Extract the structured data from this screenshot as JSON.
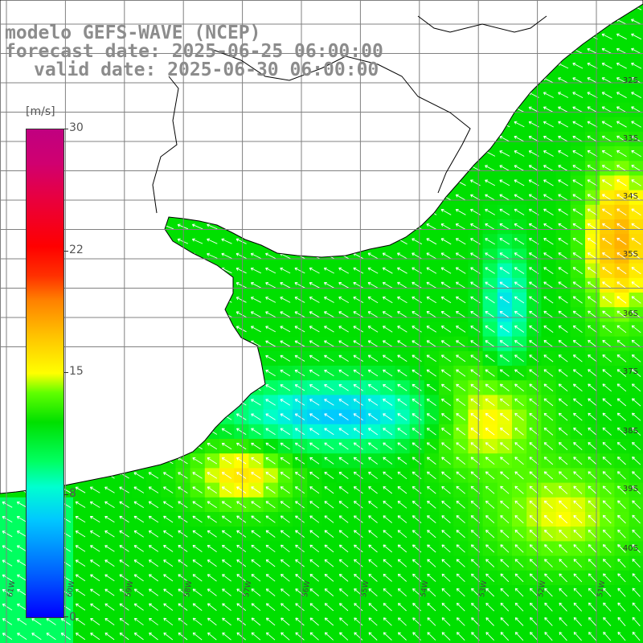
{
  "titles": {
    "line1": "modelo GEFS-WAVE (NCEP)",
    "line2": "forecast date: 2025-06-25 06:00:00",
    "line3": "valid date: 2025-06-30 06:00:00"
  },
  "colorbar": {
    "unit": "[m/s]",
    "ticks": [
      "30",
      "22",
      "15",
      "8",
      "0"
    ],
    "colors": [
      "#0000ff",
      "#00c8ff",
      "#00ffd0",
      "#00e000",
      "#ffff00",
      "#ff8000",
      "#ff0000",
      "#c00080"
    ]
  },
  "latitude_labels": [
    "32S",
    "33S",
    "34S",
    "35S",
    "36S",
    "37S",
    "38S",
    "39S",
    "40S"
  ],
  "longitude_labels": [
    "61W",
    "60W",
    "59W",
    "58W",
    "57W",
    "56W",
    "55W",
    "54W",
    "53W",
    "52W",
    "51W"
  ],
  "colors": {
    "land": "#ffffff",
    "coastline": "#000000",
    "grid": "#808080",
    "arrows": "#ffffff",
    "title_text": "#8c8c8c"
  }
}
